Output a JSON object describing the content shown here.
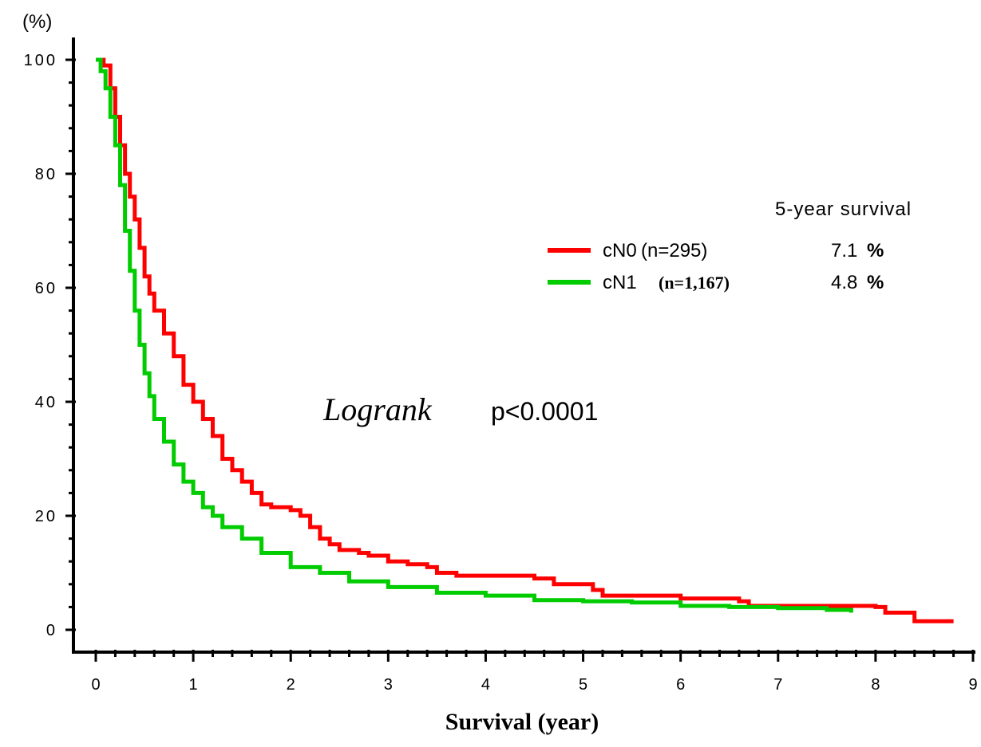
{
  "chart_data": {
    "type": "line",
    "title": "",
    "xlabel": "Survival (year)",
    "ylabel": "(%)",
    "xlim": [
      0,
      9
    ],
    "ylim": [
      0,
      100
    ],
    "xticks": [
      "0",
      "1",
      "2",
      "3",
      "4",
      "5",
      "6",
      "7",
      "8",
      "9"
    ],
    "yticks": [
      "0",
      "20",
      "40",
      "60",
      "80",
      "100"
    ],
    "legend_title": "5-year survival",
    "legend_position": "right",
    "annotation": {
      "italic": "Logrank",
      "text": "p<0.0001"
    },
    "series": [
      {
        "name": "cN0",
        "n_label": "(n=295)",
        "survival_5yr": "7.1",
        "color": "#ff0000",
        "x": [
          0,
          0.08,
          0.15,
          0.2,
          0.25,
          0.3,
          0.35,
          0.4,
          0.45,
          0.5,
          0.55,
          0.6,
          0.7,
          0.8,
          0.9,
          1.0,
          1.1,
          1.2,
          1.3,
          1.4,
          1.5,
          1.6,
          1.7,
          1.8,
          2.0,
          2.1,
          2.2,
          2.3,
          2.4,
          2.5,
          2.7,
          2.8,
          3.0,
          3.2,
          3.4,
          3.5,
          3.7,
          4.0,
          4.3,
          4.5,
          4.7,
          4.95,
          5.1,
          5.2,
          5.5,
          6.0,
          6.5,
          6.6,
          6.7,
          7.0,
          7.5,
          7.8,
          8.0,
          8.1,
          8.2,
          8.35,
          8.4,
          8.6,
          8.8
        ],
        "y": [
          100,
          99,
          95,
          90,
          85,
          80,
          76,
          72,
          67,
          62,
          59,
          56,
          52,
          48,
          43,
          40,
          37,
          34,
          30,
          28,
          26,
          24,
          22,
          21.5,
          21,
          20,
          18,
          16,
          15,
          14,
          13.5,
          13,
          12,
          11.5,
          11,
          10,
          9.5,
          9.5,
          9.5,
          9,
          8,
          8,
          7,
          6,
          6,
          5.5,
          5.5,
          5,
          4.2,
          4.2,
          4.2,
          4.2,
          4,
          3,
          3,
          3,
          1.5,
          1.5,
          1.5
        ]
      },
      {
        "name": "cN1",
        "n_label": "(n=1,167)",
        "survival_5yr": "4.8",
        "color": "#00cc00",
        "x": [
          0,
          0.05,
          0.1,
          0.15,
          0.2,
          0.25,
          0.3,
          0.35,
          0.4,
          0.45,
          0.5,
          0.55,
          0.6,
          0.7,
          0.8,
          0.9,
          1.0,
          1.1,
          1.2,
          1.3,
          1.5,
          1.7,
          2.0,
          2.3,
          2.6,
          3.0,
          3.5,
          4.0,
          4.5,
          5.0,
          5.5,
          6.0,
          6.5,
          7.0,
          7.5,
          7.7,
          7.75
        ],
        "y": [
          100,
          98,
          95,
          90,
          85,
          78,
          70,
          63,
          56,
          50,
          45,
          41,
          37,
          33,
          29,
          26,
          24,
          21.5,
          20,
          18,
          16,
          13.5,
          11,
          10,
          8.5,
          7.5,
          6.5,
          6,
          5.2,
          5,
          4.8,
          4.2,
          4,
          3.8,
          3.5,
          3.5,
          3
        ]
      }
    ]
  }
}
